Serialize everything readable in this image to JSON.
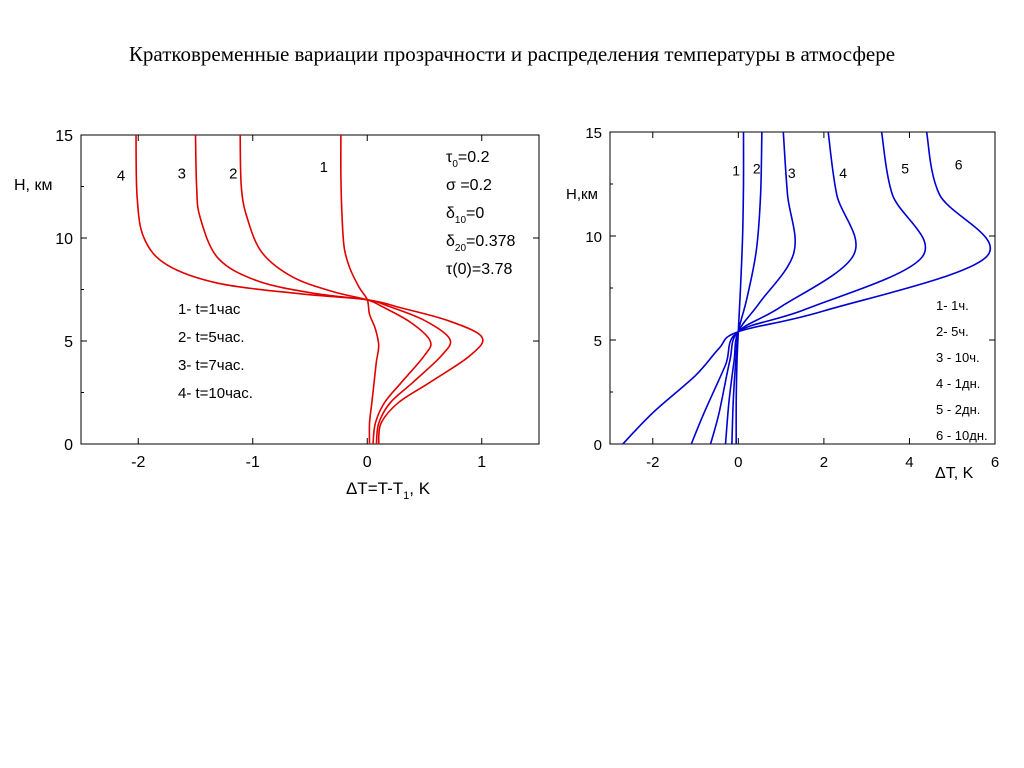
{
  "slide": {
    "title": "Кратковременные вариации прозрачности и распределения температуры  в атмосфере"
  },
  "chart_data": [
    {
      "type": "line",
      "color": "#e00000",
      "xlabel": {
        "prefix": "ΔT=T-T",
        "sub": "1",
        "suffix": ", K"
      },
      "ylabel": "H, км",
      "xlim": [
        -2.5,
        1.5
      ],
      "ylim": [
        0,
        15
      ],
      "xticks": [
        -2,
        -1,
        0,
        1
      ],
      "yticks": [
        0,
        5,
        10,
        15
      ],
      "legend": [
        "1- t=1час",
        "2- t=5час.",
        "3- t=7час.",
        "4- t=10час."
      ],
      "params": [
        {
          "sym": "τ",
          "sub": "0",
          "val": "=0.2"
        },
        {
          "sym": "σ",
          "sub": "",
          "val": " =0.2"
        },
        {
          "sym": "δ",
          "sub": "10",
          "val": "=0"
        },
        {
          "sym": "δ",
          "sub": "20",
          "val": "=0.378"
        },
        {
          "sym": "τ",
          "sub": "",
          "val": "(0)=3.78"
        }
      ],
      "series": [
        {
          "name": "1",
          "points": [
            [
              0.02,
              0
            ],
            [
              0.02,
              1
            ],
            [
              0.04,
              2
            ],
            [
              0.06,
              3
            ],
            [
              0.08,
              4
            ],
            [
              0.1,
              4.8
            ],
            [
              0.07,
              5.6
            ],
            [
              0.02,
              6.3
            ],
            [
              0,
              7
            ],
            [
              -0.07,
              7.6
            ],
            [
              -0.15,
              8.5
            ],
            [
              -0.2,
              9.5
            ],
            [
              -0.22,
              11
            ],
            [
              -0.23,
              13
            ],
            [
              -0.23,
              15
            ]
          ]
        },
        {
          "name": "2",
          "points": [
            [
              0.05,
              0
            ],
            [
              0.07,
              1
            ],
            [
              0.15,
              2
            ],
            [
              0.3,
              3
            ],
            [
              0.5,
              4.3
            ],
            [
              0.55,
              5
            ],
            [
              0.38,
              5.9
            ],
            [
              0.12,
              6.7
            ],
            [
              0,
              7
            ],
            [
              -0.3,
              7.4
            ],
            [
              -0.65,
              8.1
            ],
            [
              -0.92,
              9.3
            ],
            [
              -1.05,
              11
            ],
            [
              -1.1,
              12.5
            ],
            [
              -1.11,
              15
            ]
          ]
        },
        {
          "name": "3",
          "points": [
            [
              0.08,
              0
            ],
            [
              0.1,
              1
            ],
            [
              0.2,
              2
            ],
            [
              0.4,
              3
            ],
            [
              0.65,
              4.3
            ],
            [
              0.72,
              5.1
            ],
            [
              0.5,
              6
            ],
            [
              0.18,
              6.7
            ],
            [
              0,
              7
            ],
            [
              -0.45,
              7.3
            ],
            [
              -0.95,
              7.9
            ],
            [
              -1.3,
              9
            ],
            [
              -1.46,
              11
            ],
            [
              -1.49,
              12.5
            ],
            [
              -1.5,
              15
            ]
          ]
        },
        {
          "name": "4",
          "points": [
            [
              0.1,
              0
            ],
            [
              0.12,
              1
            ],
            [
              0.27,
              2
            ],
            [
              0.55,
              3
            ],
            [
              0.9,
              4.3
            ],
            [
              1.0,
              5.2
            ],
            [
              0.7,
              6
            ],
            [
              0.3,
              6.6
            ],
            [
              0,
              7
            ],
            [
              -0.6,
              7.3
            ],
            [
              -1.3,
              7.8
            ],
            [
              -1.75,
              8.7
            ],
            [
              -1.95,
              10
            ],
            [
              -2.01,
              12
            ],
            [
              -2.02,
              15
            ]
          ]
        }
      ],
      "curve_labels": [
        {
          "text": "1",
          "x": -0.38,
          "y": 13.2
        },
        {
          "text": "2",
          "x": -1.17,
          "y": 12.9
        },
        {
          "text": "3",
          "x": -1.62,
          "y": 12.9
        },
        {
          "text": "4",
          "x": -2.15,
          "y": 12.8
        }
      ]
    },
    {
      "type": "line",
      "color": "#0000d0",
      "xlabel": "ΔT, K",
      "ylabel": "H,км",
      "xlim": [
        -3,
        6
      ],
      "ylim": [
        0,
        15
      ],
      "xticks": [
        -2,
        0,
        2,
        4,
        6
      ],
      "yticks": [
        0,
        5,
        10,
        15
      ],
      "legend": [
        "1- 1ч.",
        "2- 5ч.",
        "3 - 10ч.",
        "4 - 1дн.",
        "5 - 2дн.",
        "6 - 10дн."
      ],
      "series": [
        {
          "name": "1",
          "points": [
            [
              -0.05,
              0
            ],
            [
              -0.05,
              2
            ],
            [
              -0.03,
              4
            ],
            [
              0,
              5.4
            ],
            [
              0.05,
              7.5
            ],
            [
              0.1,
              10
            ],
            [
              0.12,
              12.5
            ],
            [
              0.12,
              15
            ]
          ]
        },
        {
          "name": "2",
          "points": [
            [
              -0.15,
              0
            ],
            [
              -0.12,
              2
            ],
            [
              -0.06,
              4
            ],
            [
              0,
              5.4
            ],
            [
              0.2,
              7
            ],
            [
              0.42,
              9.3
            ],
            [
              0.52,
              12
            ],
            [
              0.55,
              15
            ]
          ]
        },
        {
          "name": "3",
          "points": [
            [
              -0.3,
              0
            ],
            [
              -0.22,
              2
            ],
            [
              -0.1,
              4
            ],
            [
              0,
              5.4
            ],
            [
              0.5,
              6.8
            ],
            [
              1.3,
              9.2
            ],
            [
              1.15,
              12
            ],
            [
              1.05,
              15
            ]
          ]
        },
        {
          "name": "4",
          "points": [
            [
              -0.65,
              0
            ],
            [
              -0.45,
              1.5
            ],
            [
              -0.2,
              4
            ],
            [
              0,
              5.4
            ],
            [
              1.0,
              6.6
            ],
            [
              2.7,
              9.1
            ],
            [
              2.3,
              12
            ],
            [
              2.1,
              15
            ]
          ]
        },
        {
          "name": "5",
          "points": [
            [
              -1.1,
              0
            ],
            [
              -0.8,
              1.5
            ],
            [
              -0.3,
              3.8
            ],
            [
              0,
              5.4
            ],
            [
              1.6,
              6.5
            ],
            [
              4.3,
              9.0
            ],
            [
              3.6,
              12
            ],
            [
              3.35,
              15
            ]
          ]
        },
        {
          "name": "6",
          "points": [
            [
              -2.7,
              0
            ],
            [
              -2.0,
              1.5
            ],
            [
              -1.0,
              3.3
            ],
            [
              -0.45,
              4.6
            ],
            [
              0,
              5.4
            ],
            [
              2.0,
              6.4
            ],
            [
              5.8,
              9.0
            ],
            [
              4.7,
              12
            ],
            [
              4.4,
              15
            ]
          ]
        }
      ],
      "curve_labels": [
        {
          "text": "1",
          "x": -0.05,
          "y": 12.9
        },
        {
          "text": "2",
          "x": 0.43,
          "y": 13.0
        },
        {
          "text": "3",
          "x": 1.25,
          "y": 12.8
        },
        {
          "text": "4",
          "x": 2.45,
          "y": 12.8
        },
        {
          "text": "5",
          "x": 3.9,
          "y": 13.0
        },
        {
          "text": "6",
          "x": 5.15,
          "y": 13.2
        }
      ]
    }
  ]
}
